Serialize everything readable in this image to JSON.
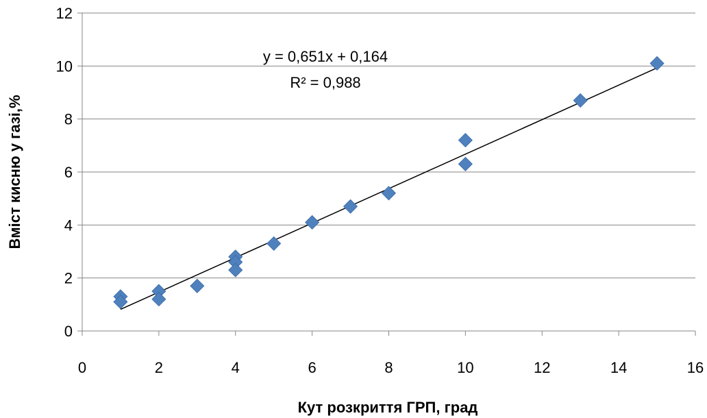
{
  "chart_data": {
    "type": "scatter",
    "xlabel": "Кут розкриття  ГРП, град",
    "ylabel": "Вміст кисню  у газі,%",
    "xlim": [
      0,
      16
    ],
    "ylim": [
      0,
      12
    ],
    "x_ticks": [
      0,
      2,
      4,
      6,
      8,
      10,
      12,
      14,
      16
    ],
    "y_ticks": [
      0,
      2,
      4,
      6,
      8,
      10,
      12
    ],
    "grid": "horizontal",
    "legend": "none",
    "series": [
      {
        "marker": "diamond",
        "color": "#4F81BD",
        "points": [
          {
            "x": 1,
            "y": 1.3
          },
          {
            "x": 1,
            "y": 1.1
          },
          {
            "x": 2,
            "y": 1.5
          },
          {
            "x": 2,
            "y": 1.2
          },
          {
            "x": 3,
            "y": 1.7
          },
          {
            "x": 4,
            "y": 2.8
          },
          {
            "x": 4,
            "y": 2.6
          },
          {
            "x": 4,
            "y": 2.3
          },
          {
            "x": 5,
            "y": 3.3
          },
          {
            "x": 6,
            "y": 4.1
          },
          {
            "x": 7,
            "y": 4.7
          },
          {
            "x": 8,
            "y": 5.2
          },
          {
            "x": 10,
            "y": 7.2
          },
          {
            "x": 10,
            "y": 6.3
          },
          {
            "x": 13,
            "y": 8.7
          },
          {
            "x": 15,
            "y": 10.1
          }
        ]
      }
    ],
    "trendline": {
      "type": "linear",
      "slope": 0.651,
      "intercept": 0.164,
      "x_range": [
        1,
        15
      ],
      "color": "#000000",
      "equation_label": "y = 0,651x + 0,164",
      "r2_label": "R² = 0,988"
    }
  }
}
